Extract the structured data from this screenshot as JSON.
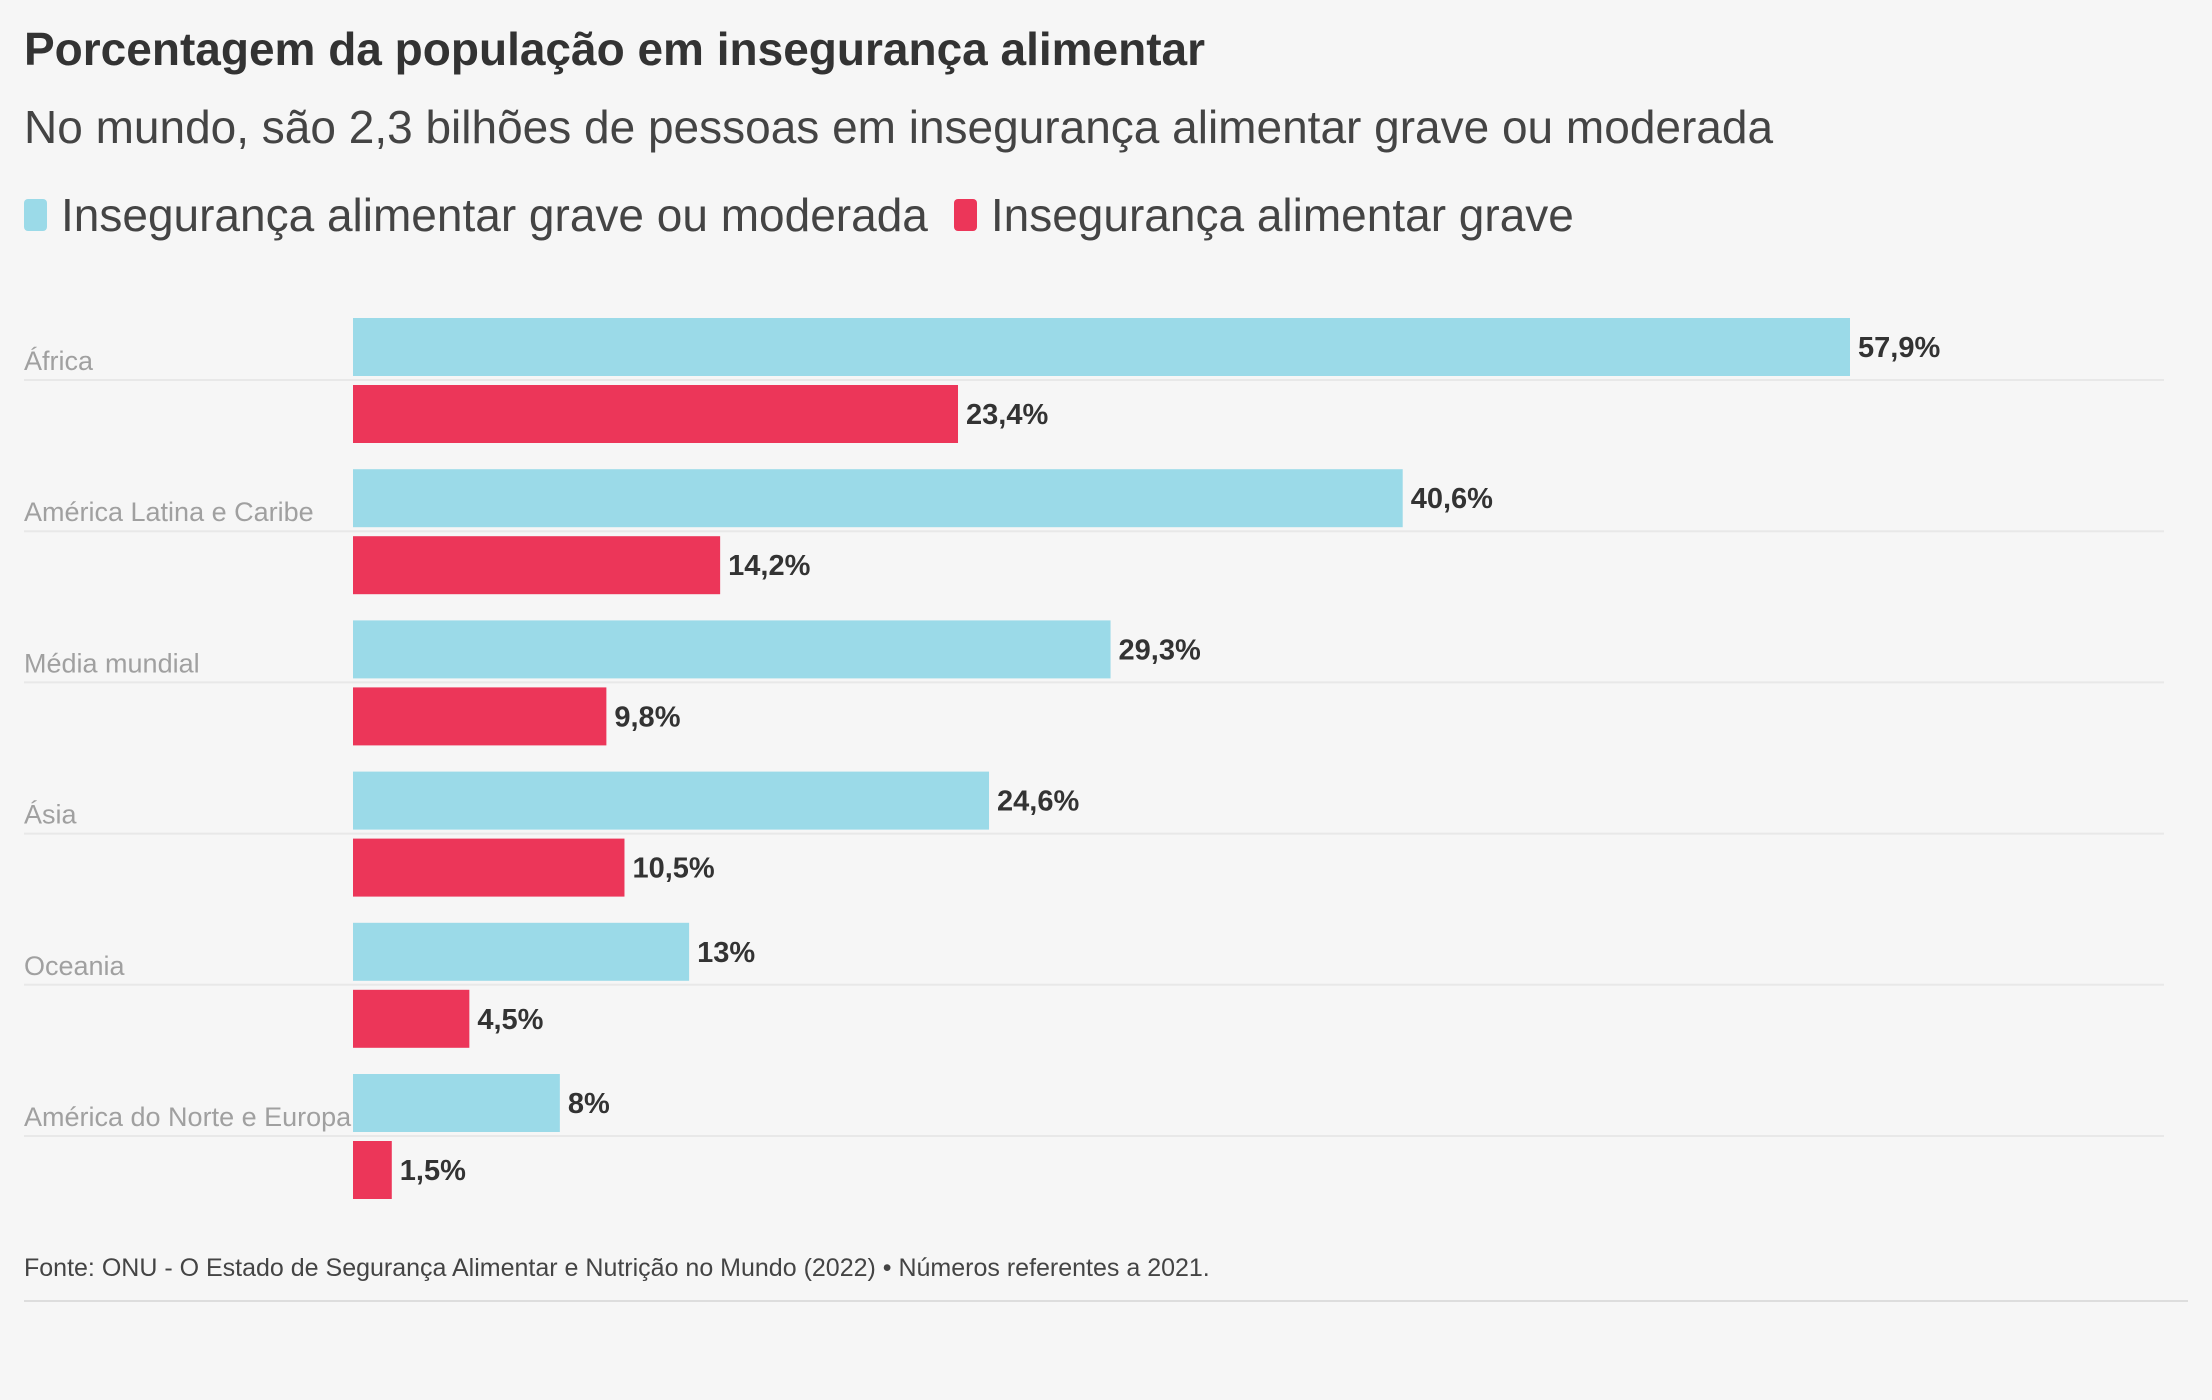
{
  "chart_data": {
    "type": "bar",
    "orientation": "horizontal",
    "title": "Porcentagem da população em insegurança alimentar",
    "subtitle": "No mundo, são 2,3 bilhões de pessoas em insegurança alimentar grave ou moderada",
    "categories": [
      "África",
      "América Latina e Caribe",
      "Média mundial",
      "Ásia",
      "Oceania",
      "América do Norte e Europa"
    ],
    "series": [
      {
        "name": "Insegurança alimentar grave ou moderada",
        "color": "#9bdae8",
        "values": [
          57.9,
          40.6,
          29.3,
          24.6,
          13,
          8
        ],
        "labels": [
          "57,9%",
          "40,6%",
          "29,3%",
          "24,6%",
          "13%",
          "8%"
        ]
      },
      {
        "name": "Insegurança alimentar grave",
        "color": "#ec3659",
        "values": [
          23.4,
          14.2,
          9.8,
          10.5,
          4.5,
          1.5
        ],
        "labels": [
          "23,4%",
          "14,2%",
          "9,8%",
          "10,5%",
          "4,5%",
          "1,5%"
        ]
      }
    ],
    "xlim": [
      0,
      57.9
    ],
    "legend_position": "top-left",
    "grid": false
  },
  "footer": {
    "source": "Fonte: ONU - O Estado de Segurança Alimentar e Nutrição no Mundo (2022) • Números referentes a 2021."
  }
}
